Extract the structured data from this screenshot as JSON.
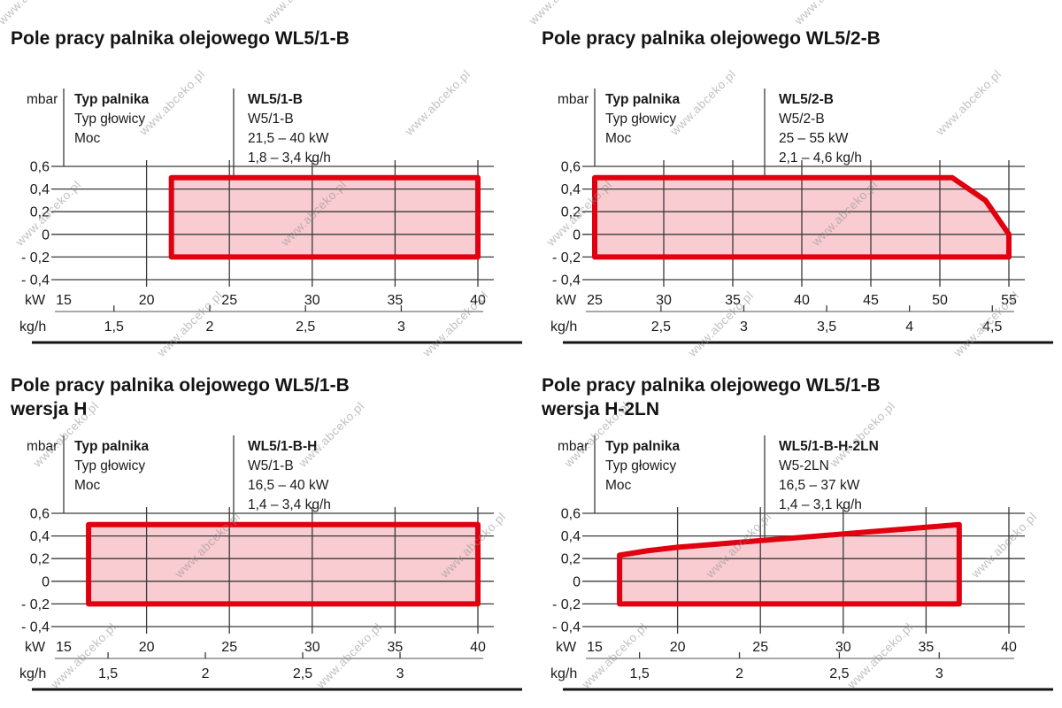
{
  "watermark": {
    "text": "www.abceko.pl"
  },
  "axis_units": {
    "pressure": "mbar",
    "power": "kW",
    "flow": "kg/h"
  },
  "legend_labels": {
    "burner_type": "Typ palnika",
    "head_type": "Typ głowicy",
    "power": "Moc"
  },
  "colors": {
    "field_fill": "#f8ccd0",
    "field_border": "#e1000f",
    "grid": "#3a3a3a",
    "flow_axis": "#8c8c8c",
    "text": "#1a1a1a",
    "watermark": "#8f8f8f"
  },
  "charts": [
    {
      "id": "WL5/1-B",
      "title_lines": [
        "Pole pracy palnika olejowego WL5/1-B"
      ],
      "legend_values": [
        "WL5/1-B",
        "W5/1-B",
        "21,5 – 40 kW",
        "1,8 – 3,4 kg/h"
      ],
      "chart_data": {
        "type": "area",
        "title": "Pole pracy palnika olejowego WL5/1-B",
        "x_axis": {
          "label": "kW",
          "ticks": [
            15,
            20,
            25,
            30,
            35,
            40
          ],
          "range": [
            15,
            40
          ]
        },
        "x2_axis": {
          "label": "kg/h",
          "ticks": [
            1.5,
            2,
            2.5,
            3
          ],
          "power_range_kw": [
            21.5,
            40
          ],
          "flow_range_kgh": [
            1.8,
            3.4
          ]
        },
        "y_axis": {
          "label": "mbar",
          "ticks": [
            0.6,
            0.4,
            0.2,
            0,
            -0.2,
            -0.4
          ],
          "range": [
            -0.4,
            0.6
          ]
        },
        "operating_field_polygon_kw_mbar": [
          [
            21.5,
            -0.2
          ],
          [
            21.5,
            0.5
          ],
          [
            40,
            0.5
          ],
          [
            40,
            -0.2
          ]
        ]
      }
    },
    {
      "id": "WL5/2-B",
      "title_lines": [
        "Pole pracy palnika olejowego WL5/2-B"
      ],
      "legend_values": [
        "WL5/2-B",
        "W5/2-B",
        "25 – 55 kW",
        "2,1 – 4,6 kg/h"
      ],
      "chart_data": {
        "type": "area",
        "title": "Pole pracy palnika olejowego WL5/2-B",
        "x_axis": {
          "label": "kW",
          "ticks": [
            25,
            30,
            35,
            40,
            45,
            50,
            55
          ],
          "range": [
            25,
            55
          ]
        },
        "x2_axis": {
          "label": "kg/h",
          "ticks": [
            2.5,
            3,
            3.5,
            4,
            4.5
          ],
          "power_range_kw": [
            25,
            55
          ],
          "flow_range_kgh": [
            2.1,
            4.6
          ]
        },
        "y_axis": {
          "label": "mbar",
          "ticks": [
            0.6,
            0.4,
            0.2,
            0,
            -0.2,
            -0.4
          ],
          "range": [
            -0.4,
            0.6
          ]
        },
        "operating_field_polygon_kw_mbar": [
          [
            25,
            -0.2
          ],
          [
            25,
            0.5
          ],
          [
            50.9,
            0.5
          ],
          [
            53.3,
            0.3
          ],
          [
            53.7,
            0.23
          ],
          [
            55,
            0
          ],
          [
            55,
            -0.2
          ]
        ]
      }
    },
    {
      "id": "WL5/1-B wersja H",
      "title_lines": [
        "Pole pracy palnika olejowego WL5/1-B",
        "wersja H"
      ],
      "legend_values": [
        "WL5/1-B-H",
        "W5/1-B",
        "16,5 – 40 kW",
        "1,4 – 3,4 kg/h"
      ],
      "chart_data": {
        "type": "area",
        "title": "Pole pracy palnika olejowego WL5/1-B wersja H",
        "x_axis": {
          "label": "kW",
          "ticks": [
            15,
            20,
            25,
            30,
            35,
            40
          ],
          "range": [
            15,
            40
          ]
        },
        "x2_axis": {
          "label": "kg/h",
          "ticks": [
            1.5,
            2,
            2.5,
            3
          ],
          "power_range_kw": [
            16.5,
            40
          ],
          "flow_range_kgh": [
            1.4,
            3.4
          ]
        },
        "y_axis": {
          "label": "mbar",
          "ticks": [
            0.6,
            0.4,
            0.2,
            0,
            -0.2,
            -0.4
          ],
          "range": [
            -0.4,
            0.6
          ]
        },
        "operating_field_polygon_kw_mbar": [
          [
            16.5,
            -0.2
          ],
          [
            16.5,
            0.5
          ],
          [
            40,
            0.5
          ],
          [
            40,
            -0.2
          ]
        ]
      }
    },
    {
      "id": "WL5/1-B wersja H-2LN",
      "title_lines": [
        "Pole pracy palnika olejowego WL5/1-B",
        "wersja H-2LN"
      ],
      "legend_values": [
        "WL5/1-B-H-2LN",
        "W5-2LN",
        "16,5 – 37 kW",
        "1,4 – 3,1 kg/h"
      ],
      "chart_data": {
        "type": "area",
        "title": "Pole pracy palnika olejowego WL5/1-B wersja H-2LN",
        "x_axis": {
          "label": "kW",
          "ticks": [
            15,
            20,
            25,
            30,
            35,
            40
          ],
          "range": [
            15,
            40
          ]
        },
        "x2_axis": {
          "label": "kg/h",
          "ticks": [
            1.5,
            2,
            2.5,
            3
          ],
          "power_range_kw": [
            16.5,
            37
          ],
          "flow_range_kgh": [
            1.4,
            3.1
          ]
        },
        "y_axis": {
          "label": "mbar",
          "ticks": [
            0.6,
            0.4,
            0.2,
            0,
            -0.2,
            -0.4
          ],
          "range": [
            -0.4,
            0.6
          ]
        },
        "operating_field_polygon_kw_mbar": [
          [
            16.5,
            -0.2
          ],
          [
            16.5,
            0.23
          ],
          [
            18.2,
            0.27
          ],
          [
            20,
            0.3
          ],
          [
            37,
            0.5
          ],
          [
            37,
            -0.2
          ]
        ]
      }
    }
  ]
}
